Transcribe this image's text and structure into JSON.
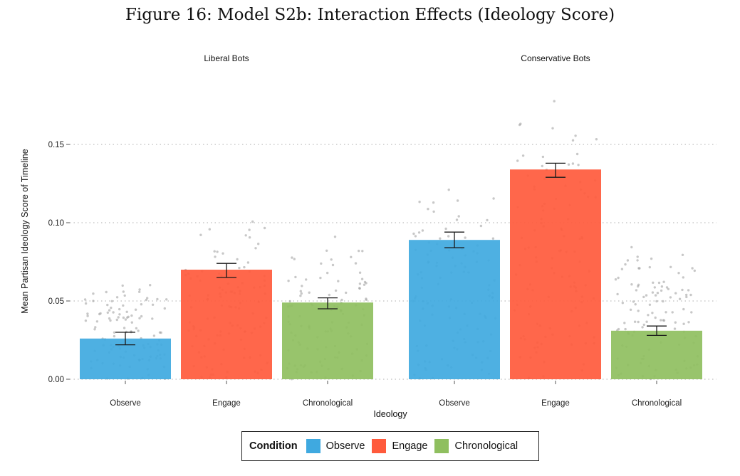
{
  "title": "Figure 16: Model S2b: Interaction Effects (Ideology Score)",
  "colors": {
    "Observe": "#3FA9E0",
    "Engage": "#FF5A3C",
    "Chronological": "#8FBF5F",
    "points": "#9a9a9a"
  },
  "chart_data": {
    "type": "bar",
    "facets": [
      "Liberal Bots",
      "Conservative Bots"
    ],
    "categories": [
      "Observe",
      "Engage",
      "Chronological"
    ],
    "xlabel": "Ideology",
    "ylabel": "Mean Partisan Ideology Score of Timeline",
    "ylim": [
      0,
      0.185
    ],
    "yticks": [
      0.0,
      0.05,
      0.1,
      0.15
    ],
    "ytick_labels": [
      "0.00",
      "0.05",
      "0.10",
      "0.15"
    ],
    "grid": "horizontal dotted",
    "legend_position": "bottom",
    "legend_title": "Condition",
    "series": [
      {
        "facet": "Liberal Bots",
        "values": [
          0.026,
          0.07,
          0.049
        ],
        "err_low": [
          0.022,
          0.065,
          0.045
        ],
        "err_high": [
          0.03,
          0.074,
          0.052
        ]
      },
      {
        "facet": "Conservative Bots",
        "values": [
          0.089,
          0.134,
          0.031
        ],
        "err_low": [
          0.084,
          0.129,
          0.028
        ],
        "err_high": [
          0.094,
          0.138,
          0.034
        ]
      }
    ],
    "point_spread": [
      [
        [
          0.0,
          0.066
        ],
        [
          0.0,
          0.106
        ],
        [
          0.0,
          0.095
        ]
      ],
      [
        [
          0.0,
          0.133
        ],
        [
          0.0,
          0.189
        ],
        [
          0.0,
          0.092
        ]
      ]
    ]
  }
}
